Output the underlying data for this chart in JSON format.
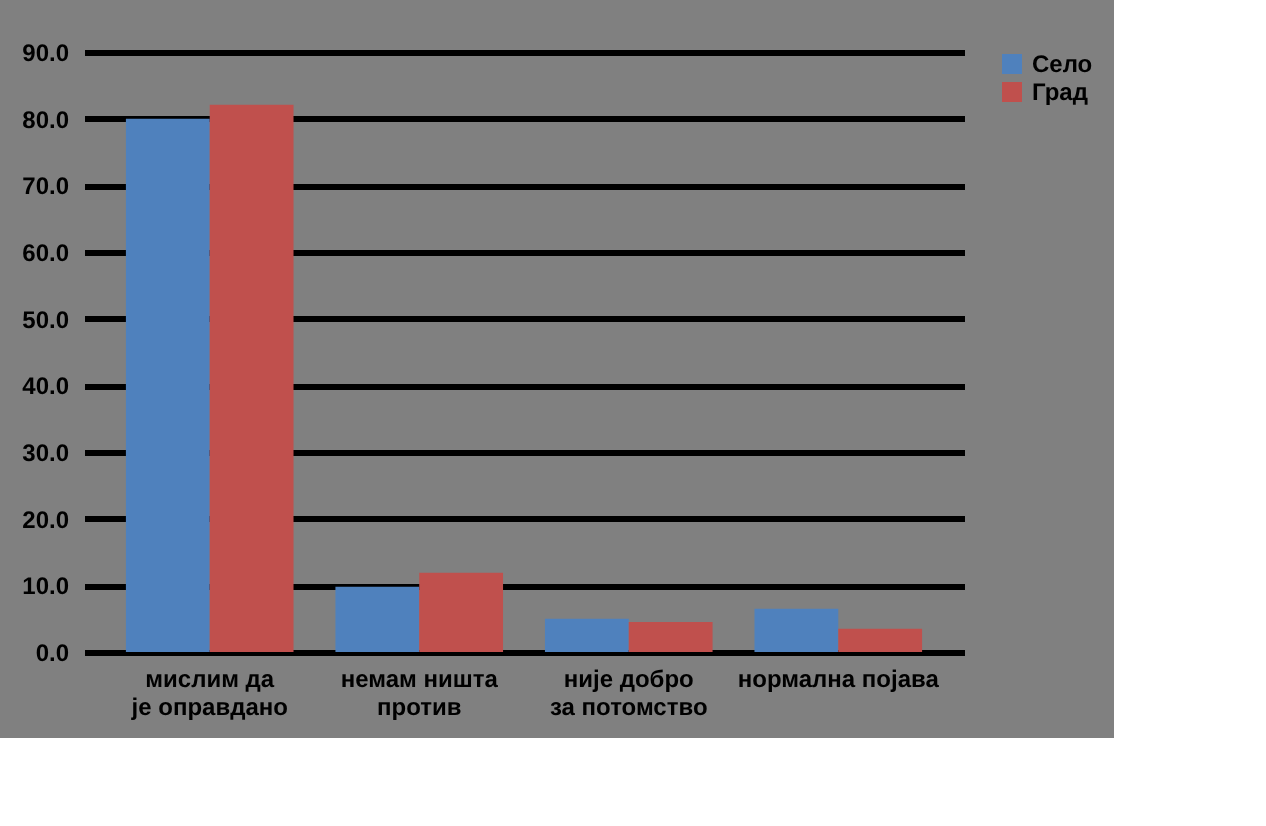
{
  "chart_data": {
    "type": "bar",
    "categories": [
      "мислим да је оправдано",
      "немам ништа против",
      "није добро за потомство",
      "нормална појава"
    ],
    "series": [
      {
        "name": "Село",
        "color": "#4f81bd",
        "values": [
          80.0,
          9.8,
          5.0,
          6.5
        ]
      },
      {
        "name": "Град",
        "color": "#c0504d",
        "values": [
          82.1,
          11.9,
          4.5,
          3.5
        ]
      }
    ],
    "ylim": [
      0,
      90
    ],
    "yticks": [
      {
        "value": 0,
        "label": "0.0"
      },
      {
        "value": 10,
        "label": "10.0"
      },
      {
        "value": 20,
        "label": "20.0"
      },
      {
        "value": 30,
        "label": "30.0"
      },
      {
        "value": 40,
        "label": "40.0"
      },
      {
        "value": 50,
        "label": "50.0"
      },
      {
        "value": 60,
        "label": "60.0"
      },
      {
        "value": 70,
        "label": "70.0"
      },
      {
        "value": 80,
        "label": "80.0"
      },
      {
        "value": 90,
        "label": "90.0"
      }
    ],
    "grid": "y",
    "legend": "right"
  }
}
